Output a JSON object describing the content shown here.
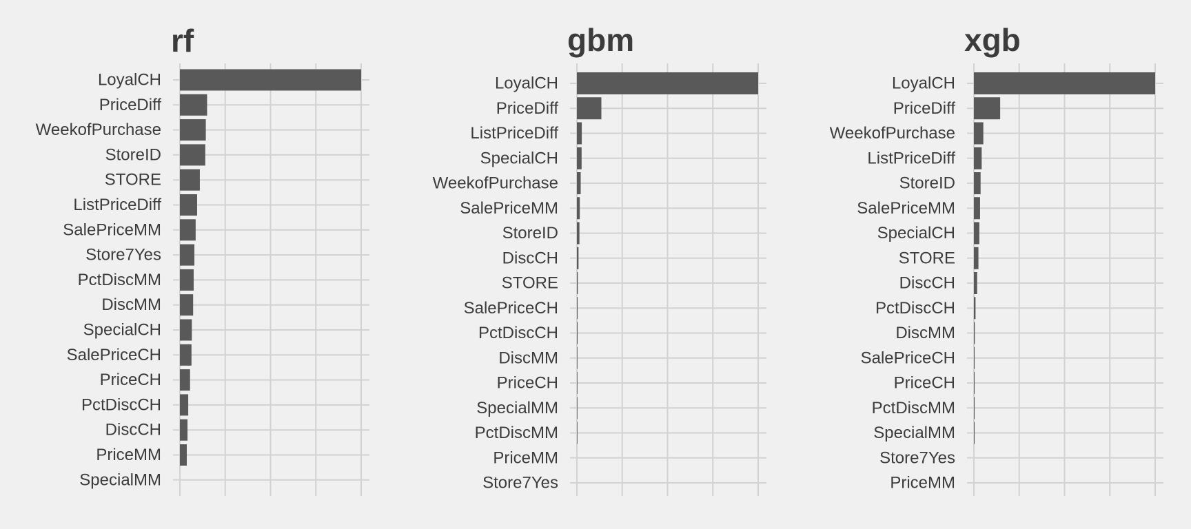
{
  "chart_data": [
    {
      "type": "bar",
      "orientation": "horizontal",
      "title": "rf",
      "categories": [
        "LoyalCH",
        "PriceDiff",
        "WeekofPurchase",
        "StoreID",
        "STORE",
        "ListPriceDiff",
        "SalePriceMM",
        "Store7Yes",
        "PctDiscMM",
        "DiscMM",
        "SpecialCH",
        "SalePriceCH",
        "PriceCH",
        "PctDiscCH",
        "DiscCH",
        "PriceMM",
        "SpecialMM"
      ],
      "values": [
        100,
        15,
        14.3,
        14,
        11,
        9.5,
        8.7,
        8,
        7.6,
        7.3,
        6.6,
        6.4,
        5.6,
        4.6,
        4.2,
        3.8,
        0
      ],
      "xlim": [
        0,
        100
      ],
      "grid": true,
      "bar_color": "#595959"
    },
    {
      "type": "bar",
      "orientation": "horizontal",
      "title": "gbm",
      "categories": [
        "LoyalCH",
        "PriceDiff",
        "ListPriceDiff",
        "SpecialCH",
        "WeekofPurchase",
        "SalePriceMM",
        "StoreID",
        "DiscCH",
        "STORE",
        "SalePriceCH",
        "PctDiscCH",
        "DiscMM",
        "PriceCH",
        "SpecialMM",
        "PctDiscMM",
        "PriceMM",
        "Store7Yes"
      ],
      "values": [
        100,
        13.5,
        2.7,
        2.6,
        2.1,
        1.6,
        1.4,
        0.9,
        0.5,
        0.4,
        0.4,
        0.3,
        0.3,
        0.3,
        0.3,
        0,
        0
      ],
      "xlim": [
        0,
        100
      ],
      "grid": true,
      "bar_color": "#595959"
    },
    {
      "type": "bar",
      "orientation": "horizontal",
      "title": "xgb",
      "categories": [
        "LoyalCH",
        "PriceDiff",
        "WeekofPurchase",
        "ListPriceDiff",
        "StoreID",
        "SalePriceMM",
        "SpecialCH",
        "STORE",
        "DiscCH",
        "PctDiscCH",
        "DiscMM",
        "SalePriceCH",
        "PriceCH",
        "PctDiscMM",
        "SpecialMM",
        "Store7Yes",
        "PriceMM"
      ],
      "values": [
        100,
        14.5,
        5.2,
        4.3,
        3.7,
        3.4,
        3,
        2.5,
        1.8,
        0.9,
        0.5,
        0.4,
        0.4,
        0.4,
        0.4,
        0,
        0
      ],
      "xlim": [
        0,
        100
      ],
      "grid": true,
      "bar_color": "#595959"
    }
  ]
}
